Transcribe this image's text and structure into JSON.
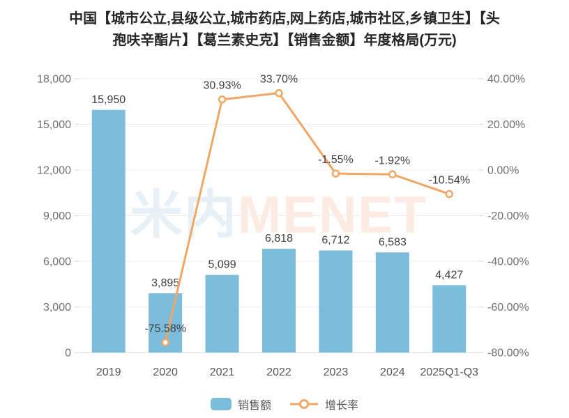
{
  "title": {
    "line1": "中国【城市公立,县级公立,城市药店,网上药店,城市社区,乡镇卫生】【头",
    "line2": "孢呋辛酯片】【葛兰素史克】【销售金额】年度格局(万元)"
  },
  "watermark": {
    "part1": "米内",
    "part2": "MENET"
  },
  "colors": {
    "bar": "#7CBDDB",
    "line": "#F0A765",
    "grid": "#ECECEC",
    "axis_line": "#D7D7D7",
    "tick": "#D9D9D9",
    "axis_text": "#6F6F6F",
    "label_text": "#3F3F3F",
    "title_text": "#262626",
    "watermark_blue": "#E7F0F6",
    "watermark_orange": "#FCEBE2"
  },
  "legend": {
    "items": [
      {
        "label": "销售额",
        "type": "bar"
      },
      {
        "label": "增长率",
        "type": "line"
      }
    ]
  },
  "chart_data": {
    "type": "combo-bar-line",
    "title": "中国【城市公立,县级公立,城市药店,网上药店,城市社区,乡镇卫生】【头孢呋辛酯片】【葛兰素史克】【销售金额】年度格局(万元)",
    "categories": [
      "2019",
      "2020",
      "2021",
      "2022",
      "2023",
      "2024",
      "2025Q1-Q3"
    ],
    "series": [
      {
        "name": "销售额",
        "type": "bar",
        "axis": "left",
        "values": [
          15950,
          3895,
          5099,
          6818,
          6712,
          6583,
          4427
        ],
        "labels": [
          "15,950",
          "3,895",
          "5,099",
          "6,818",
          "6,712",
          "6,583",
          "4,427"
        ]
      },
      {
        "name": "增长率",
        "type": "line",
        "axis": "right",
        "values": [
          null,
          -75.58,
          30.93,
          33.7,
          -1.55,
          -1.92,
          -10.54
        ],
        "labels": [
          null,
          "-75.58%",
          "30.93%",
          "33.70%",
          "-1.55%",
          "-1.92%",
          "-10.54%"
        ]
      }
    ],
    "left_axis": {
      "min": 0,
      "max": 18000,
      "step": 3000,
      "tick_labels": [
        "0",
        "3,000",
        "6,000",
        "9,000",
        "12,000",
        "15,000",
        "18,000"
      ]
    },
    "right_axis": {
      "min": -80,
      "max": 40,
      "step": 20,
      "tick_labels": [
        "-80.00%",
        "-60.00%",
        "-40.00%",
        "-20.00%",
        "0.00%",
        "20.00%",
        "40.00%"
      ]
    },
    "grid": true,
    "legend_position": "bottom"
  }
}
